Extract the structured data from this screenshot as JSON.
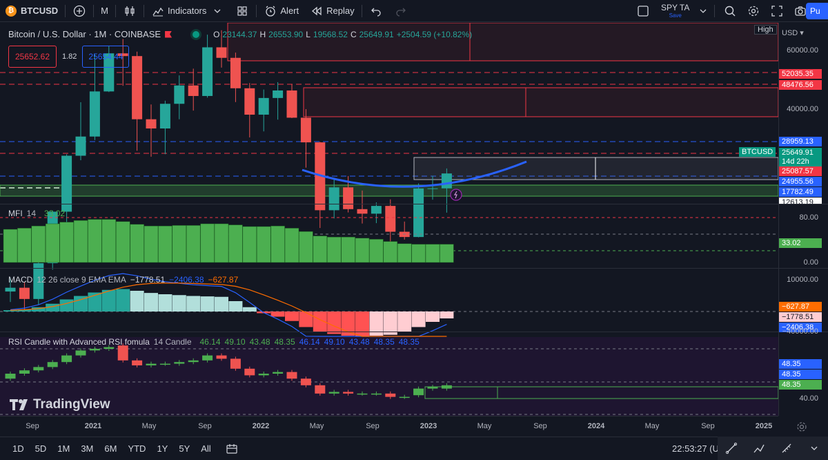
{
  "toolbar": {
    "symbol": "BTCUSD",
    "symbol_badge": "₿",
    "interval": "M",
    "indicators_label": "Indicators",
    "alert_label": "Alert",
    "replay_label": "Replay",
    "layout_name": "SPY TA",
    "layout_save": "Save",
    "publish_label": "Pu"
  },
  "legend": {
    "title": "Bitcoin / U.S. Dollar · 1M · COINBASE",
    "o_label": "O",
    "o_value": "23144.37",
    "h_label": "H",
    "h_value": "26553.90",
    "l_label": "L",
    "l_value": "19568.52",
    "c_label": "C",
    "c_value": "25649.91",
    "change": "+2504.59 (+10.82%)",
    "sell_price": "25652.62",
    "spread": "1.82",
    "buy_price": "25654.44"
  },
  "price_axis": {
    "currency": "USD",
    "high_tag": "High",
    "labels": [
      "60000.00",
      "40000.00"
    ],
    "tags": [
      {
        "text": "52035.35",
        "color": "#f23645"
      },
      {
        "text": "48476.56",
        "color": "#f23645"
      },
      {
        "text": "28959.13",
        "color": "#2962ff"
      },
      {
        "text": "25649.91",
        "color": "#089981"
      },
      {
        "text": "14d 22h",
        "color": "#089981"
      },
      {
        "text": "25087.57",
        "color": "#f23645"
      },
      {
        "text": "24955.56",
        "color": "#2962ff"
      },
      {
        "text": "17782.49",
        "color": "#2962ff"
      },
      {
        "text": "12613.19",
        "color": "#ffffff"
      }
    ],
    "symbol_tag": "BTCUSD"
  },
  "mfi": {
    "name": "MFI",
    "param": "14",
    "value": "33.02",
    "axis": [
      "80.00",
      "0.00"
    ],
    "tag": "33.02"
  },
  "macd": {
    "name": "MACD",
    "params": "12 26 close 9 EMA EMA",
    "v1": "−1778.51",
    "v2": "−2406.38",
    "v3": "−627.87",
    "axis": [
      "10000.00",
      "−40000.00"
    ],
    "tags": [
      "−627.87",
      "−1778.51",
      "−2406.38"
    ]
  },
  "rsi": {
    "name": "RSI Candle with Advanced RSI fomula",
    "param": "14 Candle",
    "values": [
      "46.14",
      "49.10",
      "43.48",
      "48.35",
      "46.14",
      "49.10",
      "43.48",
      "48.35",
      "48.35"
    ],
    "axis": [
      "40.00"
    ],
    "tags": [
      "48.35",
      "48.35",
      "48.35"
    ]
  },
  "time_axis": [
    "Sep",
    "2021",
    "May",
    "Sep",
    "2022",
    "May",
    "Sep",
    "2023",
    "May",
    "Sep",
    "2024",
    "May",
    "Sep",
    "2025"
  ],
  "bottom": {
    "ranges": [
      "1D",
      "5D",
      "1M",
      "3M",
      "6M",
      "YTD",
      "1Y",
      "5Y",
      "All"
    ],
    "clock": "22:53:27 (U"
  },
  "watermark": "TradingView",
  "colors": {
    "up": "#26a69a",
    "down": "#ef5350",
    "mfi": "#4caf50",
    "macd_line": "#2962ff",
    "signal_line": "#ff6d00",
    "accent": "#2962ff"
  },
  "chart_data": {
    "type": "candlestick",
    "interval": "1M",
    "candles": [
      {
        "t": "2020-08",
        "o": 11350,
        "h": 12480,
        "l": 10560,
        "c": 11650
      },
      {
        "t": "2020-09",
        "o": 11650,
        "h": 12090,
        "l": 9880,
        "c": 10780
      },
      {
        "t": "2020-10",
        "o": 10780,
        "h": 14100,
        "l": 10370,
        "c": 13800
      },
      {
        "t": "2020-11",
        "o": 13800,
        "h": 19860,
        "l": 13200,
        "c": 19700
      },
      {
        "t": "2020-12",
        "o": 19700,
        "h": 29300,
        "l": 17600,
        "c": 28990
      },
      {
        "t": "2021-01",
        "o": 28990,
        "h": 41950,
        "l": 28100,
        "c": 33100
      },
      {
        "t": "2021-02",
        "o": 33100,
        "h": 58350,
        "l": 32300,
        "c": 45200
      },
      {
        "t": "2021-03",
        "o": 45200,
        "h": 61800,
        "l": 45000,
        "c": 58800
      },
      {
        "t": "2021-04",
        "o": 58800,
        "h": 64900,
        "l": 47000,
        "c": 57700
      },
      {
        "t": "2021-05",
        "o": 57700,
        "h": 59500,
        "l": 30000,
        "c": 37300
      },
      {
        "t": "2021-06",
        "o": 37300,
        "h": 41300,
        "l": 28800,
        "c": 35000
      },
      {
        "t": "2021-07",
        "o": 35000,
        "h": 42400,
        "l": 29300,
        "c": 41500
      },
      {
        "t": "2021-08",
        "o": 41500,
        "h": 50500,
        "l": 37300,
        "c": 47100
      },
      {
        "t": "2021-09",
        "o": 47100,
        "h": 52900,
        "l": 39600,
        "c": 43800
      },
      {
        "t": "2021-10",
        "o": 43800,
        "h": 66900,
        "l": 43300,
        "c": 61300
      },
      {
        "t": "2021-11",
        "o": 61300,
        "h": 69000,
        "l": 53300,
        "c": 57000
      },
      {
        "t": "2021-12",
        "o": 57000,
        "h": 59100,
        "l": 42000,
        "c": 46200
      },
      {
        "t": "2022-01",
        "o": 46200,
        "h": 47900,
        "l": 32900,
        "c": 38500
      },
      {
        "t": "2022-02",
        "o": 38500,
        "h": 45800,
        "l": 34300,
        "c": 43200
      },
      {
        "t": "2022-03",
        "o": 43200,
        "h": 48200,
        "l": 37200,
        "c": 45500
      },
      {
        "t": "2022-04",
        "o": 45500,
        "h": 47400,
        "l": 37600,
        "c": 37700
      },
      {
        "t": "2022-05",
        "o": 37700,
        "h": 40000,
        "l": 26700,
        "c": 31800
      },
      {
        "t": "2022-06",
        "o": 31800,
        "h": 31900,
        "l": 17600,
        "c": 19900
      },
      {
        "t": "2022-07",
        "o": 19900,
        "h": 24700,
        "l": 18800,
        "c": 23300
      },
      {
        "t": "2022-08",
        "o": 23300,
        "h": 25200,
        "l": 19600,
        "c": 20050
      },
      {
        "t": "2022-09",
        "o": 20050,
        "h": 22800,
        "l": 18150,
        "c": 19430
      },
      {
        "t": "2022-10",
        "o": 19430,
        "h": 21000,
        "l": 18200,
        "c": 20500
      },
      {
        "t": "2022-11",
        "o": 20500,
        "h": 21450,
        "l": 15500,
        "c": 17150
      },
      {
        "t": "2022-12",
        "o": 17150,
        "h": 18400,
        "l": 16250,
        "c": 16540
      },
      {
        "t": "2023-01",
        "o": 16540,
        "h": 23950,
        "l": 16500,
        "c": 23130
      },
      {
        "t": "2023-02",
        "o": 23130,
        "h": 25250,
        "l": 21400,
        "c": 23144
      },
      {
        "t": "2023-03",
        "o": 23144,
        "h": 26553,
        "l": 19568,
        "c": 25649
      }
    ],
    "mfi_values": [
      60,
      62,
      66,
      70,
      73,
      76,
      78,
      78,
      74,
      69,
      66,
      66,
      67,
      67,
      70,
      70,
      68,
      65,
      65,
      66,
      62,
      56,
      48,
      46,
      46,
      44,
      42,
      38,
      34,
      33,
      33,
      33
    ],
    "macd_hist": [
      300,
      500,
      1000,
      1800,
      2800,
      3600,
      4400,
      5000,
      5200,
      4800,
      4300,
      4000,
      3800,
      3600,
      3500,
      3400,
      2400,
      1000,
      -400,
      -1200,
      -2200,
      -3600,
      -4700,
      -5200,
      -5600,
      -5800,
      -5600,
      -5400,
      -4800,
      -3600,
      -2400,
      -1600
    ],
    "rsi_candles": [
      {
        "o": 52,
        "c": 55
      },
      {
        "o": 55,
        "c": 57
      },
      {
        "o": 57,
        "c": 59
      },
      {
        "o": 59,
        "c": 62
      },
      {
        "o": 62,
        "c": 66
      },
      {
        "o": 66,
        "c": 69
      },
      {
        "o": 69,
        "c": 70
      },
      {
        "o": 70,
        "c": 71
      },
      {
        "o": 72,
        "c": 63
      },
      {
        "o": 63,
        "c": 60
      },
      {
        "o": 60,
        "c": 61
      },
      {
        "o": 61,
        "c": 61
      },
      {
        "o": 61,
        "c": 62
      },
      {
        "o": 62,
        "c": 63
      },
      {
        "o": 63,
        "c": 66
      },
      {
        "o": 66,
        "c": 64
      },
      {
        "o": 64,
        "c": 58
      },
      {
        "o": 58,
        "c": 54
      },
      {
        "o": 54,
        "c": 55
      },
      {
        "o": 55,
        "c": 56
      },
      {
        "o": 56,
        "c": 52
      },
      {
        "o": 52,
        "c": 48
      },
      {
        "o": 48,
        "c": 43
      },
      {
        "o": 43,
        "c": 44
      },
      {
        "o": 44,
        "c": 43
      },
      {
        "o": 43,
        "c": 43
      },
      {
        "o": 43,
        "c": 43
      },
      {
        "o": 43,
        "c": 41
      },
      {
        "o": 41,
        "c": 41
      },
      {
        "o": 42,
        "c": 46
      },
      {
        "o": 46,
        "c": 47
      },
      {
        "o": 46,
        "c": 48
      }
    ]
  }
}
